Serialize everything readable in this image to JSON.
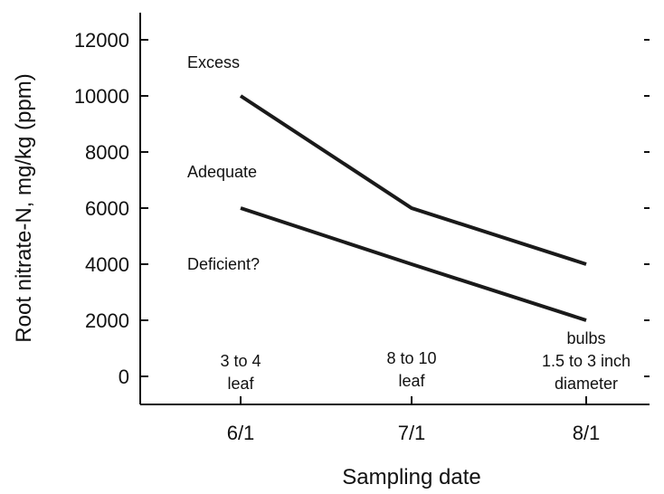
{
  "chart_data": {
    "type": "line",
    "title": "",
    "xlabel": "Sampling date",
    "ylabel": "Root nitrate-N, mg/kg (ppm)",
    "categories": [
      "6/1",
      "7/1",
      "8/1"
    ],
    "ylim": [
      -1000,
      13000
    ],
    "yticks": [
      0,
      2000,
      4000,
      6000,
      8000,
      10000,
      12000
    ],
    "grid": false,
    "series": [
      {
        "values": [
          10000,
          6000,
          4000
        ]
      },
      {
        "values": [
          6000,
          4000,
          2000
        ]
      }
    ],
    "zone_labels": [
      "Excess",
      "Adequate",
      "Deficient?"
    ],
    "stage_labels": [
      [
        "3 to 4",
        "leaf"
      ],
      [
        "8 to 10",
        "leaf"
      ],
      [
        "bulbs",
        "1.5 to 3 inch",
        "diameter"
      ]
    ],
    "colors": {
      "line": "#1a1a1a",
      "axis": "#111111",
      "background": "#ffffff"
    }
  }
}
